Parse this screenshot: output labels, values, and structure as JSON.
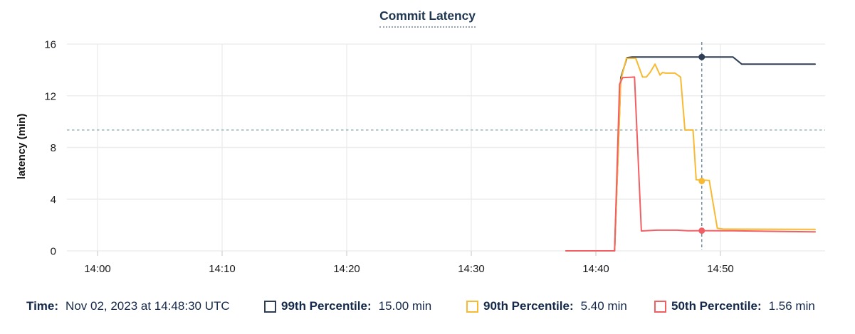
{
  "title": "Commit Latency",
  "y_axis_label": "latency (min)",
  "legend": {
    "time_label": "Time:",
    "time_value": "Nov 02, 2023 at 14:48:30 UTC",
    "items": [
      {
        "label": "99th Percentile:",
        "value": "15.00 min",
        "color": "#2e3f55"
      },
      {
        "label": "90th Percentile:",
        "value": "5.40 min",
        "color": "#f8ba32"
      },
      {
        "label": "50th Percentile:",
        "value": "1.56 min",
        "color": "#f25f63"
      }
    ]
  },
  "chart_data": {
    "type": "line",
    "title": "Commit Latency",
    "xlabel": "",
    "ylabel": "latency (min)",
    "x_unit": "minutes after 14:00 UTC",
    "x_ticks": [
      {
        "t": 0,
        "label": "14:00"
      },
      {
        "t": 10,
        "label": "14:10"
      },
      {
        "t": 20,
        "label": "14:20"
      },
      {
        "t": 30,
        "label": "14:30"
      },
      {
        "t": 40,
        "label": "14:40"
      },
      {
        "t": 50,
        "label": "14:50"
      }
    ],
    "y_ticks": [
      0,
      4,
      8,
      12,
      16
    ],
    "ylim": [
      0,
      16
    ],
    "xlim": [
      -2.45,
      58.4
    ],
    "grid": true,
    "legend_position": "bottom",
    "threshold_line": {
      "value": 9.35,
      "style": "dashed",
      "color": "#a2bcc0"
    },
    "cursor": {
      "t": 48.5,
      "time_label": "Nov 02, 2023 at 14:48:30 UTC",
      "color": "#6b87a0"
    },
    "series": [
      {
        "name": "99th Percentile",
        "color": "#2e3f55",
        "unit": "min",
        "value_at_cursor": 15.0,
        "points": [
          [
            37.6,
            0
          ],
          [
            41.5,
            0
          ],
          [
            42.0,
            13.4
          ],
          [
            42.5,
            14.95
          ],
          [
            42.9,
            15.0
          ],
          [
            51.0,
            15.0
          ],
          [
            51.7,
            14.45
          ],
          [
            57.6,
            14.45
          ]
        ]
      },
      {
        "name": "90th Percentile",
        "color": "#f8ba32",
        "unit": "min",
        "value_at_cursor": 5.4,
        "points": [
          [
            37.6,
            0
          ],
          [
            41.5,
            0
          ],
          [
            42.0,
            13.2
          ],
          [
            42.45,
            14.9
          ],
          [
            43.2,
            14.9
          ],
          [
            43.75,
            13.45
          ],
          [
            44.05,
            13.45
          ],
          [
            44.35,
            13.8
          ],
          [
            44.75,
            14.45
          ],
          [
            45.15,
            13.6
          ],
          [
            45.35,
            13.8
          ],
          [
            45.6,
            13.75
          ],
          [
            46.35,
            13.75
          ],
          [
            46.8,
            13.45
          ],
          [
            47.15,
            9.35
          ],
          [
            47.8,
            9.35
          ],
          [
            48.05,
            5.5
          ],
          [
            49.1,
            5.45
          ],
          [
            49.75,
            1.75
          ],
          [
            50.2,
            1.68
          ],
          [
            57.6,
            1.66
          ]
        ]
      },
      {
        "name": "50th Percentile",
        "color": "#f25f63",
        "unit": "min",
        "value_at_cursor": 1.56,
        "points": [
          [
            37.6,
            0
          ],
          [
            41.5,
            0
          ],
          [
            41.9,
            12.9
          ],
          [
            42.15,
            13.4
          ],
          [
            43.1,
            13.45
          ],
          [
            43.65,
            1.54
          ],
          [
            44.9,
            1.6
          ],
          [
            46.5,
            1.6
          ],
          [
            47.4,
            1.55
          ],
          [
            48.5,
            1.56
          ],
          [
            51.0,
            1.55
          ],
          [
            55.0,
            1.5
          ],
          [
            57.6,
            1.47
          ]
        ]
      }
    ],
    "colors": {
      "grid": "#ededed",
      "tick_mark": "#d8d8d8",
      "tick_text": "#17191c",
      "threshold": "#a2bcc0",
      "cursor": "#6b87a0",
      "background": "#ffffff"
    }
  }
}
